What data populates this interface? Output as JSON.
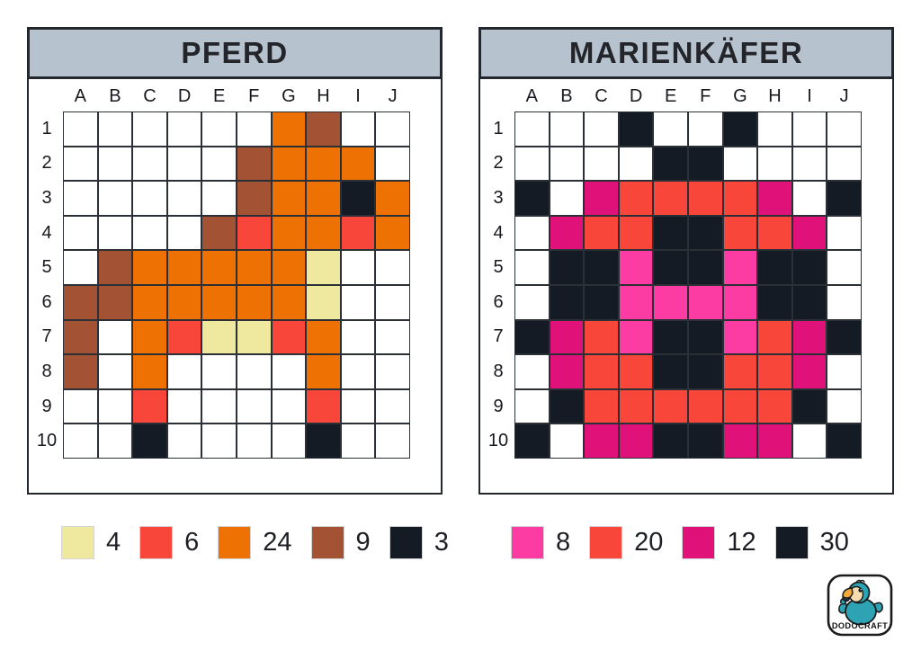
{
  "palette": {
    "white": "#ffffff",
    "orange": "#ee7203",
    "brown": "#a35233",
    "red": "#f8473a",
    "cream": "#efe99f",
    "black": "#141b24",
    "pink": "#fc3ba3",
    "magenta": "#e01179"
  },
  "code_map": {
    "W": "white",
    "O": "orange",
    "B": "brown",
    "R": "red",
    "C": "cream",
    "K": "black",
    "P": "pink",
    "M": "magenta"
  },
  "header_bg": "#b6c3ce",
  "grid_line_color": "#2b2f36",
  "grids": [
    {
      "title": "PFERD",
      "columns": [
        "A",
        "B",
        "C",
        "D",
        "E",
        "F",
        "G",
        "H",
        "I",
        "J"
      ],
      "rows": [
        "1",
        "2",
        "3",
        "4",
        "5",
        "6",
        "7",
        "8",
        "9",
        "10"
      ],
      "cells": [
        "WWWWWWOBWW",
        "WWWWWBOOOW",
        "WWWWWBOOKO",
        "WWWWBROORO",
        "WBOOOOOCWW",
        "BBOOOOOCWW",
        "BWORCCROWW",
        "BWOWWWWOWW",
        "WWRWWWWRWW",
        "WWKWWWWKWW"
      ],
      "legend": [
        {
          "color": "cream",
          "count": "4"
        },
        {
          "color": "red",
          "count": "6"
        },
        {
          "color": "orange",
          "count": "24"
        },
        {
          "color": "brown",
          "count": "9"
        },
        {
          "color": "black",
          "count": "3"
        }
      ]
    },
    {
      "title": "MARIENKÄFER",
      "columns": [
        "A",
        "B",
        "C",
        "D",
        "E",
        "F",
        "G",
        "H",
        "I",
        "J"
      ],
      "rows": [
        "1",
        "2",
        "3",
        "4",
        "5",
        "6",
        "7",
        "8",
        "9",
        "10"
      ],
      "cells": [
        "WWWKWWKWWW",
        "WWWWKKWWWW",
        "KWMRRRRMWK",
        "WMRRKKRRMW",
        "WKKPKKPKKW",
        "WKKPPPPKKW",
        "KMRPKKPRMK",
        "WMRRKKRRMW",
        "WKRRRRRRKW",
        "KWMMKKMMWK"
      ],
      "legend": [
        {
          "color": "pink",
          "count": "8"
        },
        {
          "color": "red",
          "count": "20"
        },
        {
          "color": "magenta",
          "count": "12"
        },
        {
          "color": "black",
          "count": "30"
        }
      ]
    }
  ],
  "logo": {
    "brand": "DODOCRAFT",
    "body_color": "#2da3b4",
    "face_color": "#f6ddb0",
    "beak_color": "#f2a93b"
  }
}
